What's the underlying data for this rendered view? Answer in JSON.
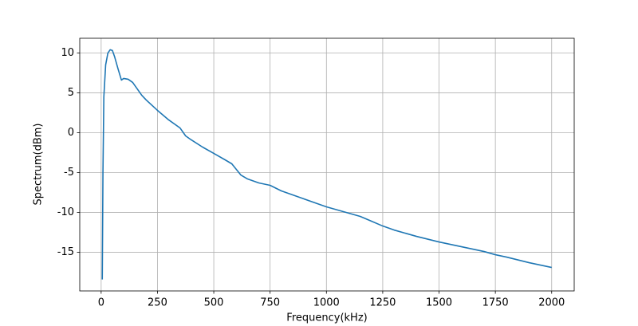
{
  "chart_data": {
    "type": "line",
    "x_label": "Frequency(kHz)",
    "y_label": "Spectrum(dBm)",
    "x": [
      5,
      8,
      12,
      20,
      30,
      40,
      50,
      60,
      75,
      90,
      100,
      120,
      140,
      160,
      180,
      200,
      250,
      300,
      350,
      375,
      400,
      450,
      500,
      550,
      580,
      600,
      620,
      650,
      700,
      750,
      800,
      900,
      1000,
      1100,
      1150,
      1200,
      1250,
      1300,
      1400,
      1500,
      1600,
      1700,
      1750,
      1800,
      1900,
      2000
    ],
    "values": [
      -18.4,
      -5,
      4.5,
      8.5,
      10,
      10.4,
      10.3,
      9.5,
      8,
      6.6,
      6.8,
      6.7,
      6.3,
      5.5,
      4.7,
      4.1,
      2.8,
      1.6,
      0.6,
      -0.4,
      -0.9,
      -1.8,
      -2.6,
      -3.4,
      -3.9,
      -4.6,
      -5.3,
      -5.8,
      -6.3,
      -6.6,
      -7.3,
      -8.3,
      -9.3,
      -10.1,
      -10.5,
      -11.1,
      -11.7,
      -12.2,
      -13,
      -13.7,
      -14.3,
      -14.9,
      -15.3,
      -15.6,
      -16.3,
      -16.9
    ],
    "color": "#1f77b4",
    "xlim": [
      -95,
      2100
    ],
    "ylim": [
      -19.84,
      11.84
    ],
    "xticks": [
      0,
      250,
      500,
      750,
      1000,
      1250,
      1500,
      1750,
      2000
    ],
    "yticks": [
      -15,
      -10,
      -5,
      0,
      5,
      10
    ],
    "grid": true
  }
}
